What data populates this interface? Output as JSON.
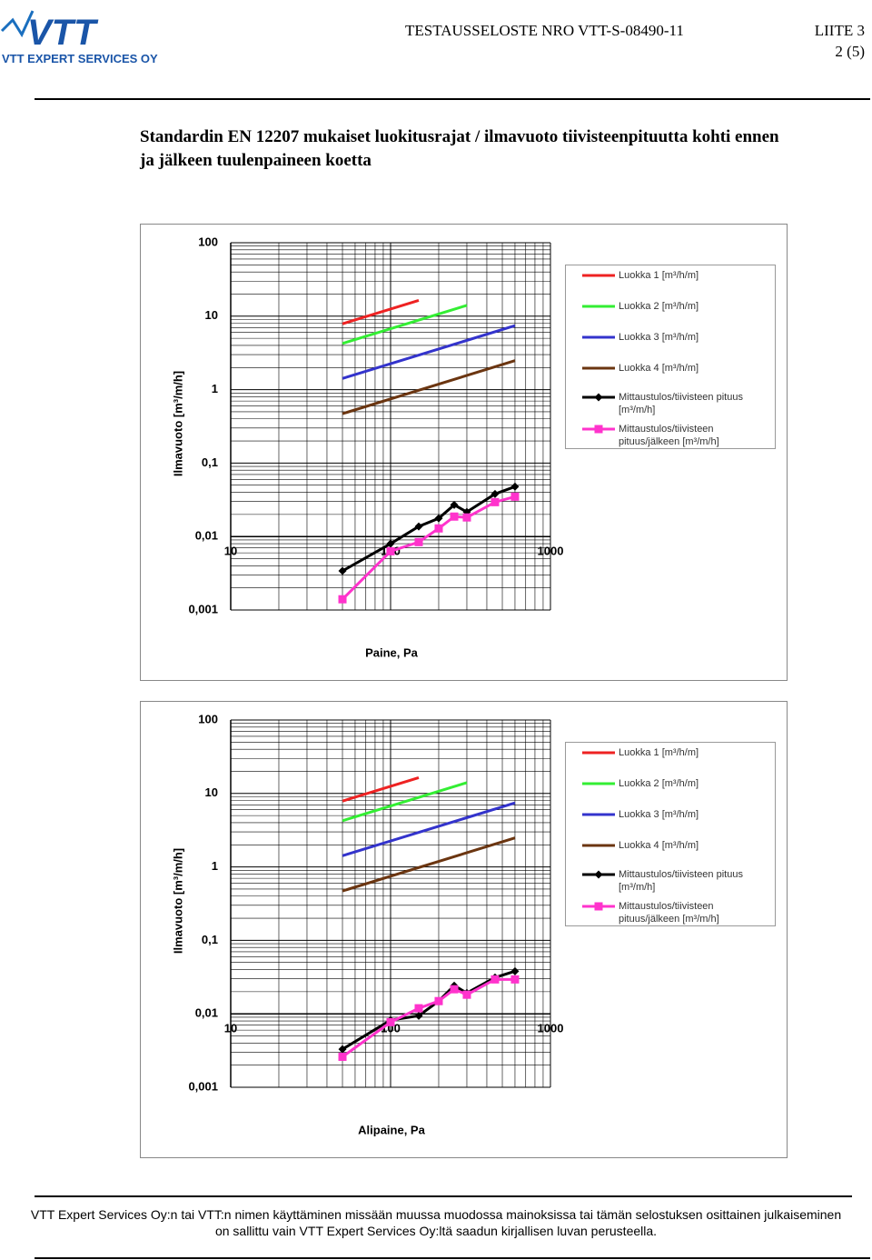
{
  "header": {
    "logo": "VTT",
    "company": "VTT EXPERT SERVICES OY",
    "report": "TESTAUSSELOSTE NRO VTT-S-08490-11",
    "appendix": "LIITE 3",
    "page": "2 (5)"
  },
  "title": {
    "line1": "Standardin EN 12207 mukaiset luokitusrajat / ilmavuoto tiivisteenpituutta kohti ennen",
    "line2": "ja jälkeen tuulenpaineen koetta"
  },
  "chart_data": [
    {
      "type": "line",
      "x_label": "Paine, Pa",
      "y_label": "Ilmavuoto [m³/m/h]",
      "xscale": "log",
      "yscale": "log",
      "xlim": [
        10,
        1000
      ],
      "ylim": [
        0.001,
        100
      ],
      "x_axis_at": 0.01,
      "xticks": [
        10,
        100,
        1000
      ],
      "yticks": [
        {
          "value": 0.001,
          "label": "0,001"
        },
        {
          "value": 0.01,
          "label": "0,01"
        },
        {
          "value": 0.1,
          "label": "0,1"
        },
        1,
        10,
        100
      ],
      "grid": true,
      "legend": "right",
      "series": [
        {
          "name": "Luokka 1 [m³/h/m]",
          "color": "#ee2222",
          "x": [
            50,
            150
          ],
          "values": [
            7.87,
            16.38
          ]
        },
        {
          "name": "Luokka 2 [m³/h/m]",
          "color": "#33ee33",
          "x": [
            50,
            300
          ],
          "values": [
            4.25,
            14.04
          ]
        },
        {
          "name": "Luokka 3 [m³/h/m]",
          "color": "#3333cc",
          "x": [
            50,
            600
          ],
          "values": [
            1.42,
            7.43
          ]
        },
        {
          "name": "Luokka 4 [m³/h/m]",
          "color": "#6b3510",
          "x": [
            50,
            600
          ],
          "values": [
            0.47,
            2.48
          ]
        },
        {
          "name": "Mittaustulos/tiivisteen pituus [m³/m/h]",
          "color": "#000000",
          "marker": "diamond",
          "x": [
            50,
            100,
            150,
            200,
            250,
            300,
            450,
            600
          ],
          "values": [
            0.0034,
            0.008,
            0.0137,
            0.0177,
            0.027,
            0.0216,
            0.038,
            0.0478
          ]
        },
        {
          "name": "Mittaustulos/tiivisteen pituus/jälkeen [m³/m/h]",
          "color": "#ff33cc",
          "marker": "square",
          "x": [
            50,
            100,
            150,
            200,
            250,
            300,
            450,
            600
          ],
          "values": [
            0.0014,
            0.0063,
            0.0084,
            0.0129,
            0.0187,
            0.0182,
            0.0294,
            0.0349
          ]
        }
      ]
    },
    {
      "type": "line",
      "x_label": "Alipaine, Pa",
      "y_label": "Ilmavuoto [m³/m/h]",
      "xscale": "log",
      "yscale": "log",
      "xlim": [
        10,
        1000
      ],
      "ylim": [
        0.001,
        100
      ],
      "x_axis_at": 0.01,
      "xticks": [
        10,
        100,
        1000
      ],
      "yticks": [
        {
          "value": 0.001,
          "label": "0,001"
        },
        {
          "value": 0.01,
          "label": "0,01"
        },
        {
          "value": 0.1,
          "label": "0,1"
        },
        1,
        10,
        100
      ],
      "grid": true,
      "legend": "right",
      "series": [
        {
          "name": "Luokka 1 [m³/h/m]",
          "color": "#ee2222",
          "x": [
            50,
            150
          ],
          "values": [
            7.87,
            16.38
          ]
        },
        {
          "name": "Luokka 2 [m³/h/m]",
          "color": "#33ee33",
          "x": [
            50,
            300
          ],
          "values": [
            4.25,
            14.04
          ]
        },
        {
          "name": "Luokka 3 [m³/h/m]",
          "color": "#3333cc",
          "x": [
            50,
            600
          ],
          "values": [
            1.42,
            7.43
          ]
        },
        {
          "name": "Luokka 4 [m³/h/m]",
          "color": "#6b3510",
          "x": [
            50,
            600
          ],
          "values": [
            0.47,
            2.48
          ]
        },
        {
          "name": "Mittaustulos/tiivisteen pituus [m³/m/h]",
          "color": "#000000",
          "marker": "diamond",
          "x": [
            50,
            100,
            150,
            200,
            250,
            300,
            450,
            600
          ],
          "values": [
            0.0033,
            0.0082,
            0.0094,
            0.0149,
            0.0242,
            0.0192,
            0.0312,
            0.038
          ]
        },
        {
          "name": "Mittaustulos/tiivisteen pituus/jälkeen [m³/m/h]",
          "color": "#ff33cc",
          "marker": "square",
          "x": [
            50,
            100,
            150,
            200,
            250,
            300,
            450,
            600
          ],
          "values": [
            0.0026,
            0.0077,
            0.0119,
            0.0149,
            0.0216,
            0.0182,
            0.0294,
            0.0294
          ]
        }
      ]
    }
  ],
  "footer": {
    "line1": "VTT Expert Services Oy:n tai VTT:n nimen käyttäminen missään muussa muodossa mainoksissa tai tämän selostuksen osittainen julkaiseminen",
    "line2": "on sallittu vain VTT Expert Services Oy:ltä saadun kirjallisen luvan perusteella."
  }
}
